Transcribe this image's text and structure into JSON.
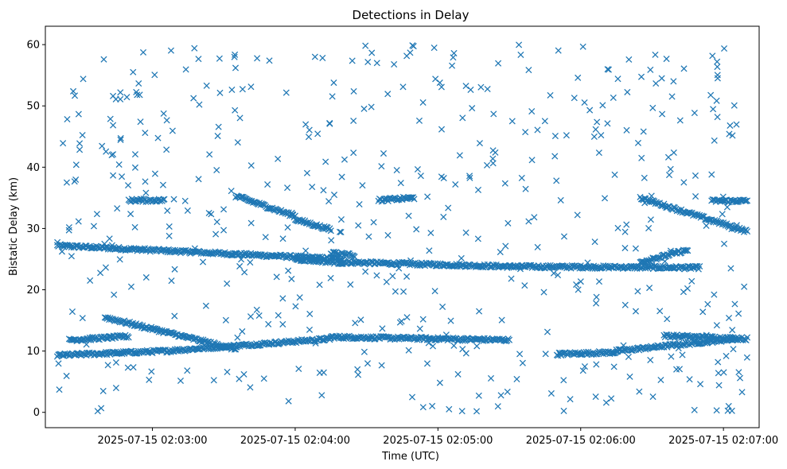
{
  "chart_data": {
    "type": "scatter",
    "title": "Detections in Delay",
    "xlabel": "Time (UTC)",
    "ylabel": "Bistatic Delay (km)",
    "x_axis_type": "datetime",
    "x_domain": [
      "2025-07-15 02:02:15",
      "2025-07-15 02:07:15"
    ],
    "ylim": [
      -2.5,
      63
    ],
    "x_ticks": [
      {
        "t": "2025-07-15 02:03:00",
        "label": "2025-07-15 02:03:00"
      },
      {
        "t": "2025-07-15 02:04:00",
        "label": "2025-07-15 02:04:00"
      },
      {
        "t": "2025-07-15 02:05:00",
        "label": "2025-07-15 02:05:00"
      },
      {
        "t": "2025-07-15 02:06:00",
        "label": "2025-07-15 02:06:00"
      },
      {
        "t": "2025-07-15 02:07:00",
        "label": "2025-07-15 02:07:00"
      }
    ],
    "y_ticks": [
      0,
      10,
      20,
      30,
      40,
      50,
      60
    ],
    "marker": "x",
    "color": "#1f77b4",
    "grid": false,
    "legend": "none",
    "series": [
      {
        "name": "",
        "tracks": [
          {
            "t_start": "2025-07-15 02:02:20",
            "t_end": "2025-07-15 02:04:20",
            "y_start": 27.2,
            "y_end": 25.0
          },
          {
            "t_start": "2025-07-15 02:04:20",
            "t_end": "2025-07-15 02:05:30",
            "y_start": 24.5,
            "y_end": 23.8
          },
          {
            "t_start": "2025-07-15 02:05:30",
            "t_end": "2025-07-15 02:06:50",
            "y_start": 23.8,
            "y_end": 23.6
          },
          {
            "t_start": "2025-07-15 02:02:20",
            "t_end": "2025-07-15 02:03:05",
            "y_start": 9.3,
            "y_end": 10.0
          },
          {
            "t_start": "2025-07-15 02:03:05",
            "t_end": "2025-07-15 02:04:15",
            "y_start": 10.0,
            "y_end": 12.0
          },
          {
            "t_start": "2025-07-15 02:04:15",
            "t_end": "2025-07-15 02:05:30",
            "y_start": 12.3,
            "y_end": 11.8
          },
          {
            "t_start": "2025-07-15 02:05:50",
            "t_end": "2025-07-15 02:06:15",
            "y_start": 9.5,
            "y_end": 9.8
          },
          {
            "t_start": "2025-07-15 02:06:15",
            "t_end": "2025-07-15 02:07:05",
            "y_start": 10.0,
            "y_end": 12.0
          },
          {
            "t_start": "2025-07-15 02:06:35",
            "t_end": "2025-07-15 02:07:10",
            "y_start": 12.5,
            "y_end": 12.0
          },
          {
            "t_start": "2025-07-15 02:02:25",
            "t_end": "2025-07-15 02:02:50",
            "y_start": 11.8,
            "y_end": 12.4
          },
          {
            "t_start": "2025-07-15 02:02:40",
            "t_end": "2025-07-15 02:03:35",
            "y_start": 15.5,
            "y_end": 10.3
          },
          {
            "t_start": "2025-07-15 02:03:35",
            "t_end": "2025-07-15 02:04:00",
            "y_start": 35.3,
            "y_end": 32.0
          },
          {
            "t_start": "2025-07-15 02:04:00",
            "t_end": "2025-07-15 02:04:15",
            "y_start": 31.5,
            "y_end": 29.8
          },
          {
            "t_start": "2025-07-15 02:04:00",
            "t_end": "2025-07-15 02:04:20",
            "y_start": 25.0,
            "y_end": 24.4
          },
          {
            "t_start": "2025-07-15 02:04:35",
            "t_end": "2025-07-15 02:04:50",
            "y_start": 34.6,
            "y_end": 35.0
          },
          {
            "t_start": "2025-07-15 02:04:15",
            "t_end": "2025-07-15 02:04:25",
            "y_start": 26.0,
            "y_end": 25.6
          },
          {
            "t_start": "2025-07-15 02:06:25",
            "t_end": "2025-07-15 02:07:10",
            "y_start": 35.0,
            "y_end": 29.5
          },
          {
            "t_start": "2025-07-15 02:02:50",
            "t_end": "2025-07-15 02:03:05",
            "y_start": 34.6,
            "y_end": 34.6
          },
          {
            "t_start": "2025-07-15 02:06:25",
            "t_end": "2025-07-15 02:06:45",
            "y_start": 24.5,
            "y_end": 26.5
          },
          {
            "t_start": "2025-07-15 02:06:55",
            "t_end": "2025-07-15 02:07:10",
            "y_start": 34.5,
            "y_end": 34.5
          }
        ],
        "scatter_note": "",
        "random_points": 520
      }
    ]
  }
}
